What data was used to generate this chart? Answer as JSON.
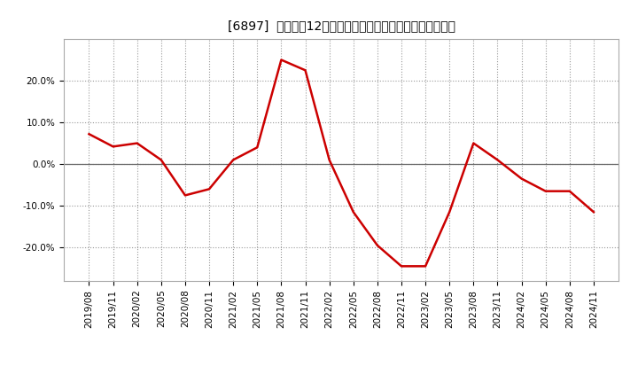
{
  "title": "[6897]  売上高の12か月移動合計の対前年同期増減率の推移",
  "line_color": "#cc0000",
  "background_color": "#ffffff",
  "plot_bg_color": "#ffffff",
  "grid_color": "#999999",
  "dates": [
    "2019/08",
    "2019/11",
    "2020/02",
    "2020/05",
    "2020/08",
    "2020/11",
    "2021/02",
    "2021/05",
    "2021/08",
    "2021/11",
    "2022/02",
    "2022/05",
    "2022/08",
    "2022/11",
    "2023/02",
    "2023/05",
    "2023/08",
    "2023/11",
    "2024/02",
    "2024/05",
    "2024/08",
    "2024/11"
  ],
  "values": [
    0.072,
    0.042,
    0.05,
    0.01,
    -0.075,
    -0.06,
    0.01,
    0.04,
    0.25,
    0.225,
    0.01,
    -0.115,
    -0.195,
    -0.245,
    -0.245,
    -0.115,
    0.05,
    0.01,
    -0.035,
    -0.065,
    -0.065,
    -0.115
  ],
  "ylim": [
    -0.28,
    0.3
  ],
  "yticks": [
    -0.2,
    -0.1,
    0.0,
    0.1,
    0.2
  ],
  "title_fontsize": 11,
  "tick_fontsize": 7.5,
  "line_width": 1.8
}
